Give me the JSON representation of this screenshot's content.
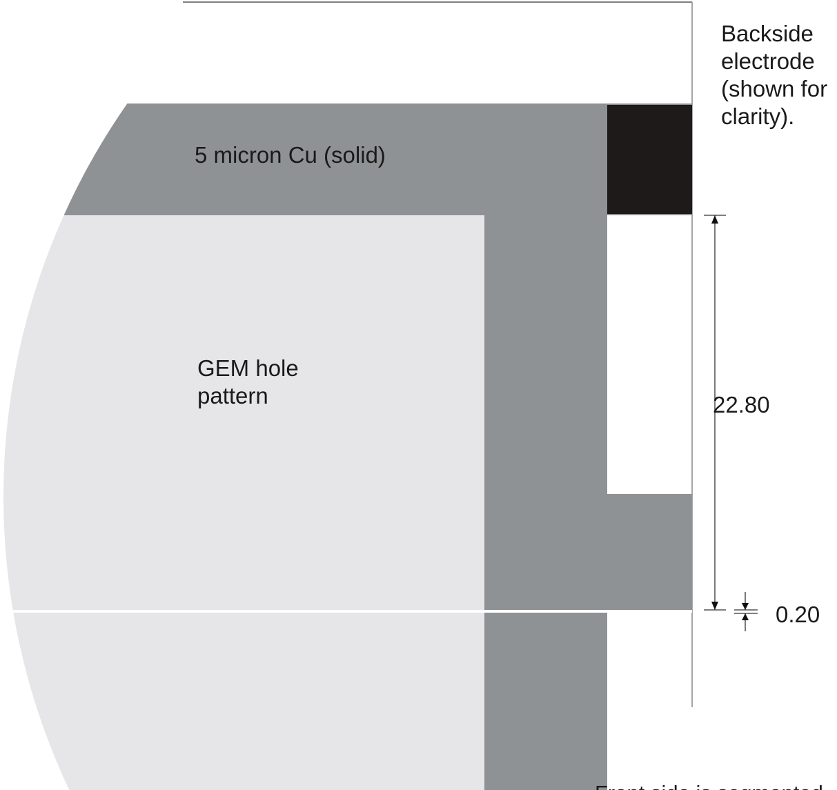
{
  "labels": {
    "cu_solid": "5 micron Cu (solid)",
    "gem_line1": "GEM hole",
    "gem_line2": "pattern",
    "backside_line1": "Backside",
    "backside_line2": "electrode",
    "backside_line3": "(shown for",
    "backside_line4": "clarity).",
    "dim_large": "22.80",
    "dim_small": "0.20",
    "front_side": "Front side is segmented"
  },
  "colors": {
    "cu_gray": "#8f9294",
    "gem_light": "#e6e6e8",
    "electrode_black": "#1e1a1a",
    "line": "#444444"
  }
}
